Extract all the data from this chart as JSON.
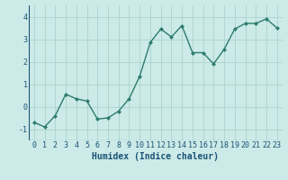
{
  "x": [
    0,
    1,
    2,
    3,
    4,
    5,
    6,
    7,
    8,
    9,
    10,
    11,
    12,
    13,
    14,
    15,
    16,
    17,
    18,
    19,
    20,
    21,
    22,
    23
  ],
  "y": [
    -0.7,
    -0.9,
    -0.4,
    0.55,
    0.35,
    0.25,
    -0.55,
    -0.5,
    -0.2,
    0.35,
    1.35,
    2.85,
    3.45,
    3.1,
    3.6,
    2.4,
    2.4,
    1.9,
    2.55,
    3.45,
    3.7,
    3.7,
    3.9,
    3.5
  ],
  "line_color": "#2e7d6e",
  "marker": "D",
  "markersize": 2.0,
  "linewidth": 1.0,
  "bg_color": "#cceae7",
  "grid_color": "#aad4d0",
  "xlabel": "Humidex (Indice chaleur)",
  "xlabel_fontsize": 7,
  "xlabel_color": "#1a5276",
  "tick_fontsize": 6,
  "tick_color": "#1a5276",
  "ylim": [
    -1.5,
    4.5
  ],
  "xlim": [
    -0.5,
    23.5
  ],
  "yticks": [
    -1,
    0,
    1,
    2,
    3,
    4
  ],
  "xticks": [
    0,
    1,
    2,
    3,
    4,
    5,
    6,
    7,
    8,
    9,
    10,
    11,
    12,
    13,
    14,
    15,
    16,
    17,
    18,
    19,
    20,
    21,
    22,
    23
  ]
}
